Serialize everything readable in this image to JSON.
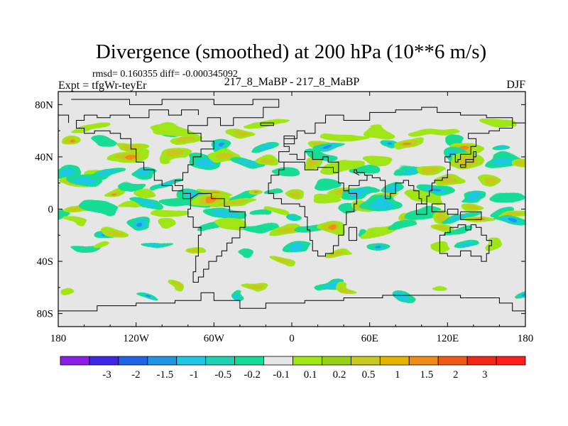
{
  "chart_data": {
    "type": "heatmap",
    "title": "Divergence (smoothed) at 200 hPa (10**6 m/s)",
    "stats_text": "rmsd= 0.160355 diff= -0.000345092",
    "left_label": "Expt = tfgWr-teyEr",
    "center_label": "217_8_MaBP - 217_8_MaBP",
    "right_label": "DJF",
    "x_ticks": [
      {
        "value": -180,
        "label": "180"
      },
      {
        "value": -120,
        "label": "120W"
      },
      {
        "value": -60,
        "label": "60W"
      },
      {
        "value": 0,
        "label": "0"
      },
      {
        "value": 60,
        "label": "60E"
      },
      {
        "value": 120,
        "label": "120E"
      },
      {
        "value": 180,
        "label": "180"
      }
    ],
    "y_ticks": [
      {
        "value": 80,
        "label": "80N"
      },
      {
        "value": 40,
        "label": "40N"
      },
      {
        "value": 0,
        "label": "0"
      },
      {
        "value": -40,
        "label": "40S"
      },
      {
        "value": -80,
        "label": "80S"
      }
    ],
    "xlim": [
      -180,
      180
    ],
    "ylim": [
      -90,
      90
    ],
    "colorbar": {
      "colors": [
        "#8c1ee8",
        "#3c28e6",
        "#1e64e6",
        "#1e96e6",
        "#1ec8e6",
        "#1ed2b4",
        "#14dc96",
        "#e6e6e6",
        "#a0e614",
        "#96d214",
        "#c8c81e",
        "#e6b400",
        "#f08c14",
        "#f05a14",
        "#f02814",
        "#ff1e1e"
      ],
      "labels": [
        "-3",
        "-2",
        "-1.5",
        "-1",
        "-0.5",
        "-0.2",
        "-0.1",
        "0.1",
        "0.2",
        "0.5",
        "1",
        "1.5",
        "2",
        "3"
      ]
    },
    "palette": {
      "background_zero": "#e6e6e6",
      "pos1": "#a0e614",
      "pos2": "#c8c81e",
      "pos3": "#f08c14",
      "neg1": "#14dc96",
      "neg2": "#1ec8e6",
      "neg3": "#1e96e6"
    }
  }
}
